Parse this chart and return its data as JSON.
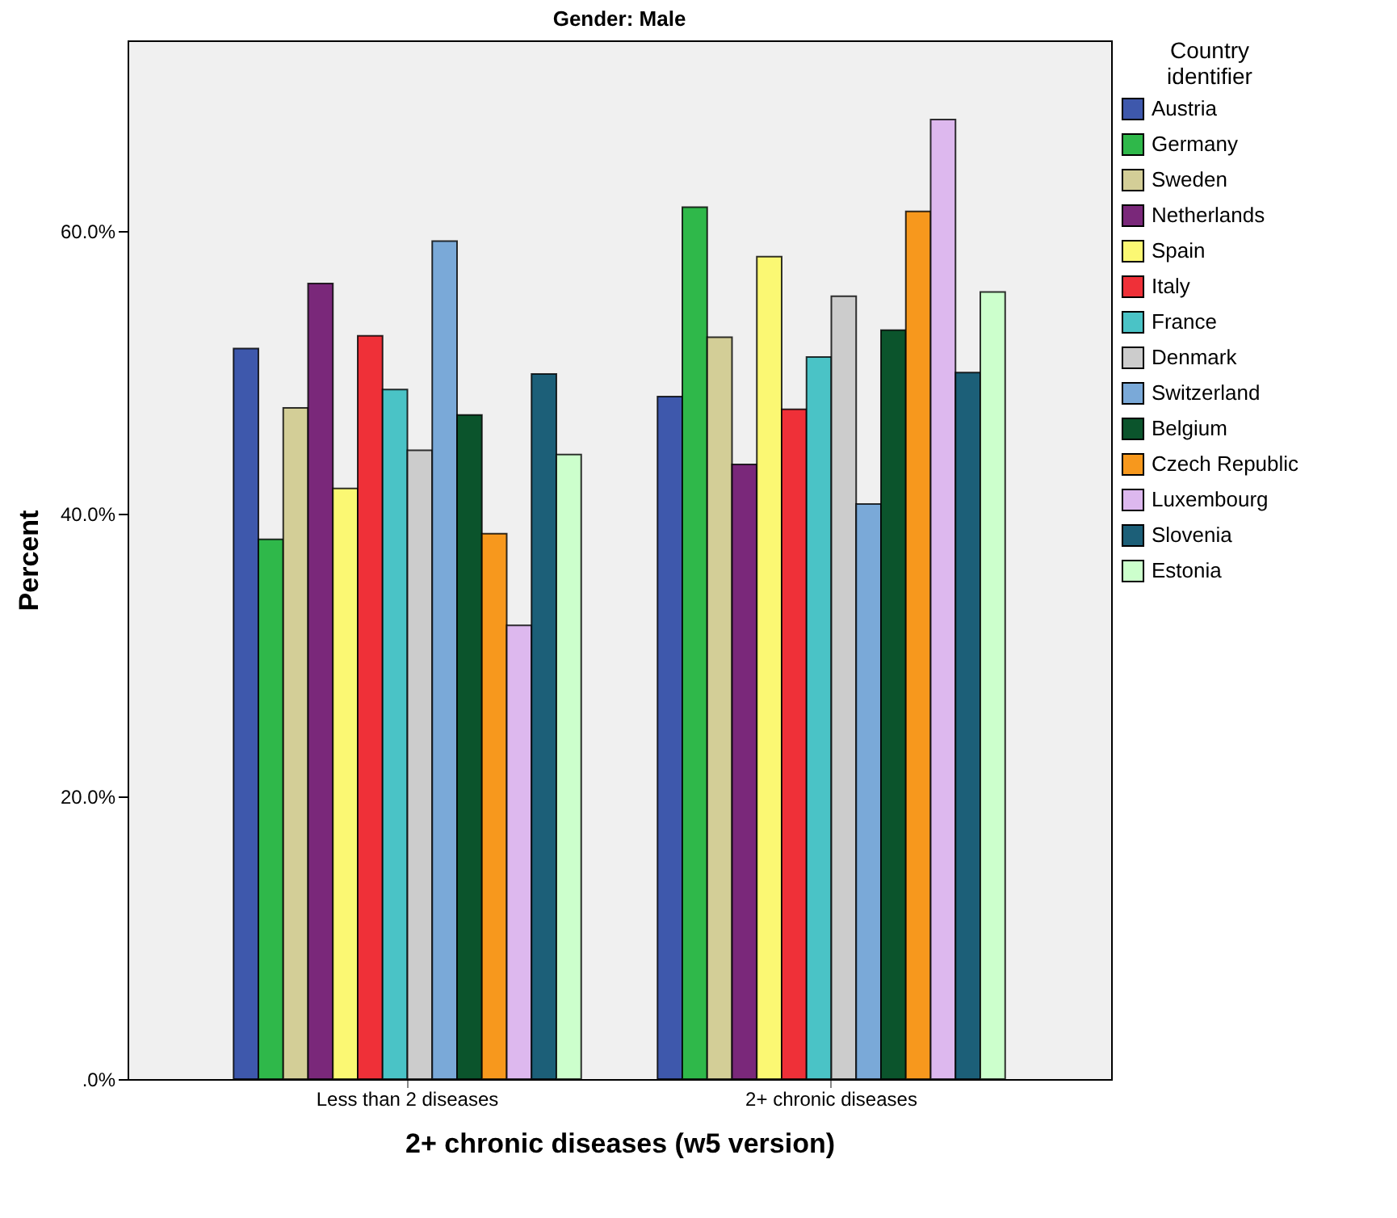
{
  "chart_data": {
    "type": "bar",
    "title": "Gender: Male",
    "xlabel": "2+ chronic diseases (w5 version)",
    "ylabel": "Percent",
    "legend_title": "Country identifier",
    "legend": "right",
    "grid": false,
    "categories": [
      "Less than 2 diseases",
      "2+ chronic diseases"
    ],
    "ylim": [
      0,
      73.5
    ],
    "yticks": [
      {
        "value": 0,
        "label": ".0%"
      },
      {
        "value": 20,
        "label": "20.0%"
      },
      {
        "value": 40,
        "label": "40.0%"
      },
      {
        "value": 60,
        "label": "60.0%"
      }
    ],
    "series": [
      {
        "name": "Austria",
        "color": "#3e58ac",
        "values": [
          51.7,
          48.3
        ]
      },
      {
        "name": "Germany",
        "color": "#2fb84a",
        "values": [
          38.2,
          61.7
        ]
      },
      {
        "name": "Sweden",
        "color": "#d3ce97",
        "values": [
          47.5,
          52.5
        ]
      },
      {
        "name": "Netherlands",
        "color": "#7a287a",
        "values": [
          56.3,
          43.5
        ]
      },
      {
        "name": "Spain",
        "color": "#fbf873",
        "values": [
          41.8,
          58.2
        ]
      },
      {
        "name": "Italy",
        "color": "#ef3038",
        "values": [
          52.6,
          47.4
        ]
      },
      {
        "name": "France",
        "color": "#4ac3c6",
        "values": [
          48.8,
          51.1
        ]
      },
      {
        "name": "Denmark",
        "color": "#cccccc",
        "values": [
          44.5,
          55.4
        ]
      },
      {
        "name": "Switzerland",
        "color": "#7aa9d8",
        "values": [
          59.3,
          40.7
        ]
      },
      {
        "name": "Belgium",
        "color": "#0b542c",
        "values": [
          47.0,
          53.0
        ]
      },
      {
        "name": "Czech Republic",
        "color": "#f7981d",
        "values": [
          38.6,
          61.4
        ]
      },
      {
        "name": "Luxembourg",
        "color": "#ddb8ee",
        "values": [
          32.1,
          67.9
        ]
      },
      {
        "name": "Slovenia",
        "color": "#1c5f78",
        "values": [
          49.9,
          50.0
        ]
      },
      {
        "name": "Estonia",
        "color": "#ccffcc",
        "values": [
          44.2,
          55.7
        ]
      }
    ]
  }
}
